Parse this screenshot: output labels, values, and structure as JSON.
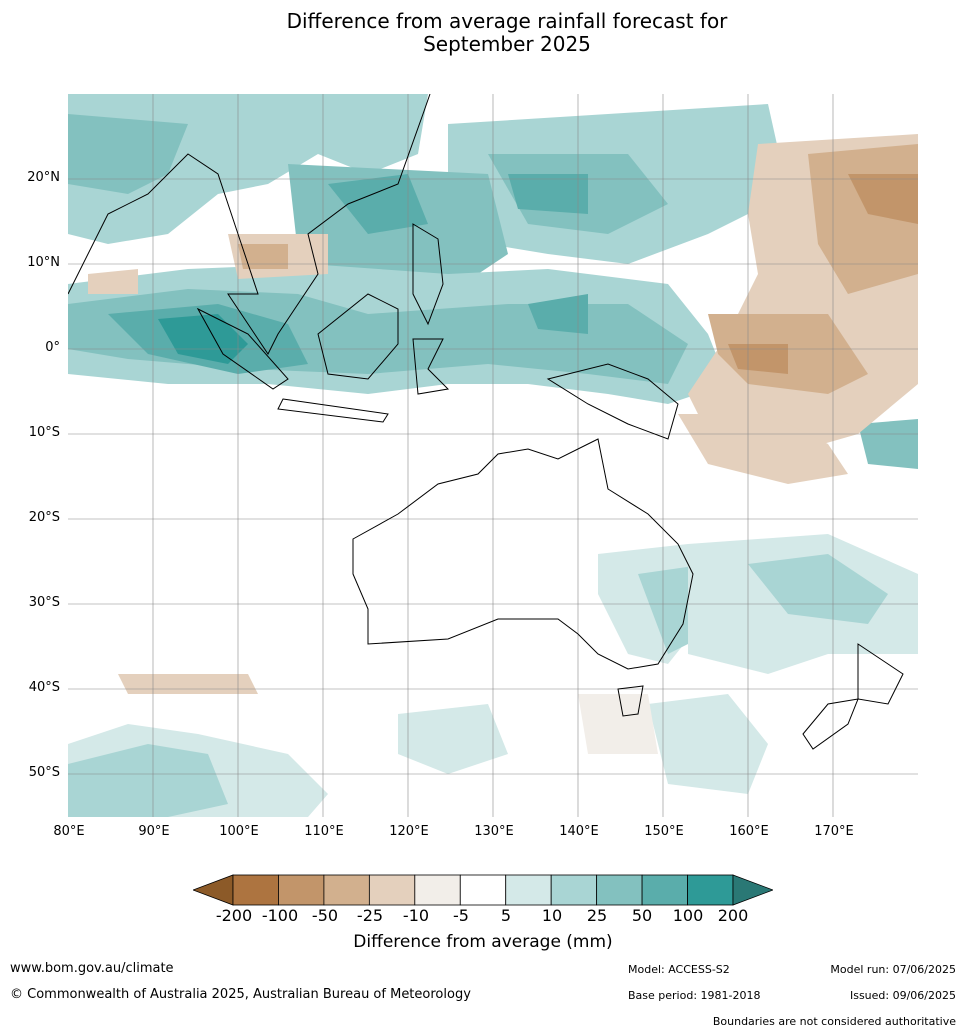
{
  "title_line1": "Difference from average rainfall forecast for",
  "title_line2": "September 2025",
  "lat_labels": [
    "20°N",
    "10°N",
    "0°",
    "10°S",
    "20°S",
    "30°S",
    "40°S",
    "50°S"
  ],
  "lon_labels": [
    "80°E",
    "90°E",
    "100°E",
    "110°E",
    "120°E",
    "130°E",
    "140°E",
    "150°E",
    "160°E",
    "170°E"
  ],
  "colorbar": {
    "ticks": [
      "-200",
      "-100",
      "-50",
      "-25",
      "-10",
      "-5",
      "5",
      "10",
      "25",
      "50",
      "100",
      "200"
    ],
    "colors": [
      "#8c5a28",
      "#ad7440",
      "#c2956a",
      "#d2b08e",
      "#e4d0bd",
      "#f2eee9",
      "#ffffff",
      "#d4e9e8",
      "#a9d5d4",
      "#83c1bf",
      "#5aadab",
      "#2e9a97",
      "#2a7875"
    ],
    "label": "Difference from average (mm)"
  },
  "footer": {
    "url": "www.bom.gov.au/climate",
    "copyright": "© Commonwealth of Australia 2025, Australian Bureau of Meteorology",
    "model": "Model: ACCESS-S2",
    "base_period": "Base period: 1981-2018",
    "model_run": "Model run: 07/06/2025",
    "issued": "Issued: 09/06/2025",
    "disclaimer": "Boundaries are not considered authoritative"
  }
}
